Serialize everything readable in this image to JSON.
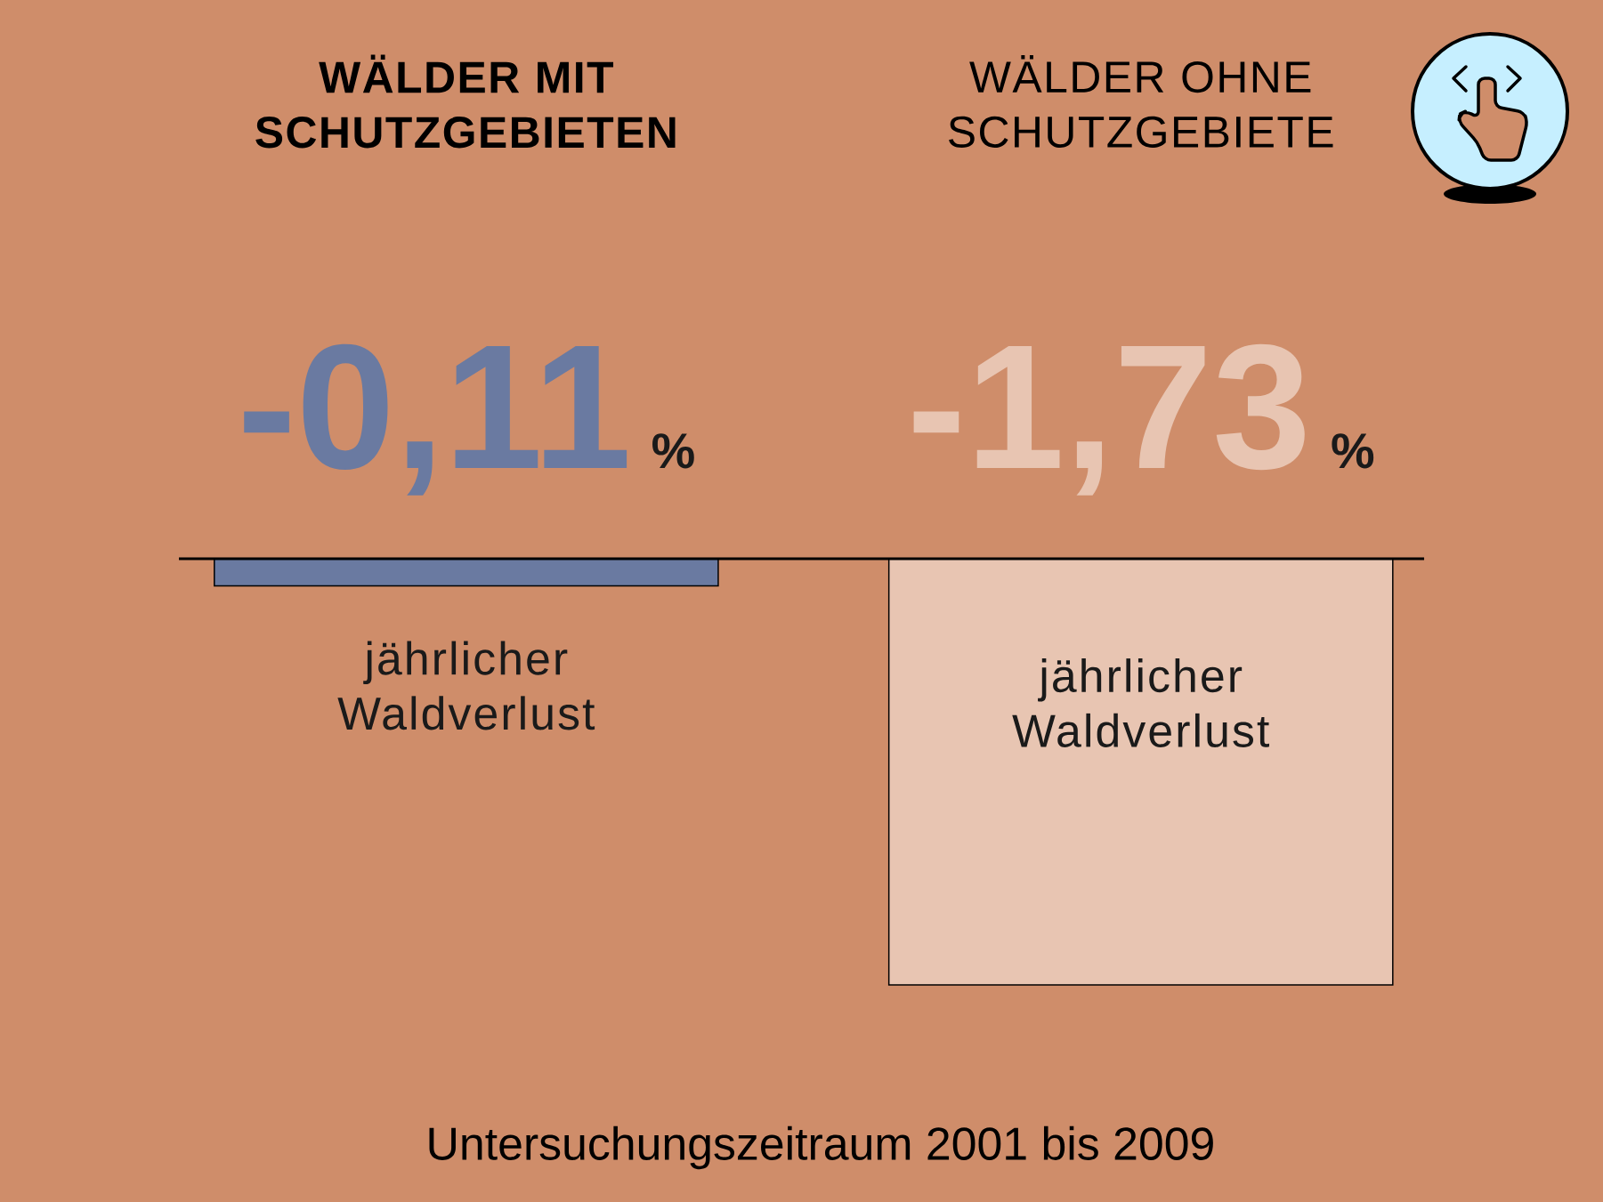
{
  "chart_data": {
    "type": "bar",
    "categories": [
      "WÄLDER MIT SCHUTZGEBIETEN",
      "WÄLDER OHNE SCHUTZGEBIETE"
    ],
    "values": [
      -0.11,
      -1.73
    ],
    "colors": [
      "#6a7aa1",
      "#e8c5b2"
    ],
    "value_labels": [
      "-0,11 %",
      "-1,73 %"
    ],
    "annotations": [
      "jährlicher Waldverlust",
      "jährlicher Waldverlust",
      "Untersuchungszeitraum 2001 bis 2009"
    ]
  }
}
